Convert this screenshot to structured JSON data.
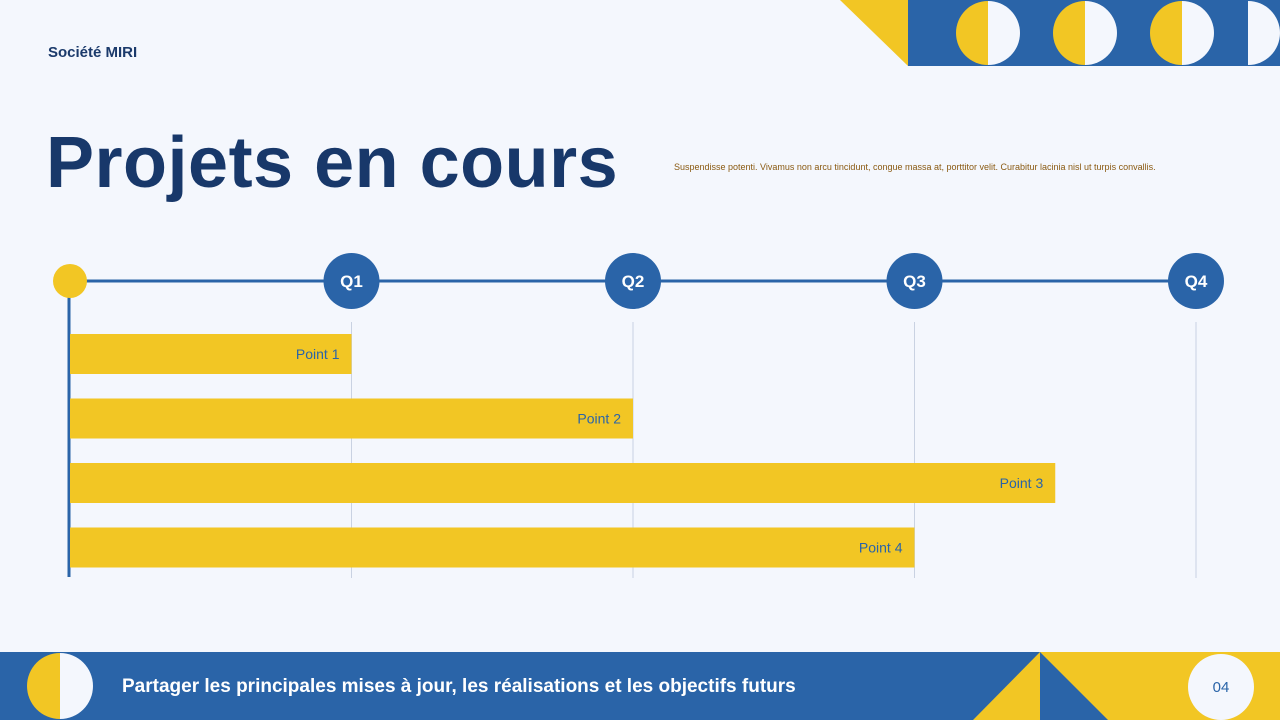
{
  "header": {
    "company": "Société MIRI",
    "title": "Projets en cours",
    "subtitle": "Suspendisse potenti. Vivamus non arcu tincidunt, congue massa at, porttitor velit. Curabitur lacinia nisl ut turpis convallis."
  },
  "footer": {
    "text": "Partager les principales mises à jour, les réalisations et les objectifs futurs",
    "page_number": "04"
  },
  "colors": {
    "navy": "#18386a",
    "blue": "#2a64a8",
    "yellow": "#f2c624",
    "background": "#f4f7fd",
    "bar_label": "#2a64a8"
  },
  "chart_data": {
    "type": "bar",
    "orientation": "horizontal",
    "x_ticks": [
      "Q1",
      "Q2",
      "Q3",
      "Q4"
    ],
    "xlim": [
      0,
      4
    ],
    "categories": [
      "Point 1",
      "Point 2",
      "Point 3",
      "Point 4"
    ],
    "values": [
      1.0,
      2.0,
      3.5,
      3.0
    ],
    "grid": true
  }
}
